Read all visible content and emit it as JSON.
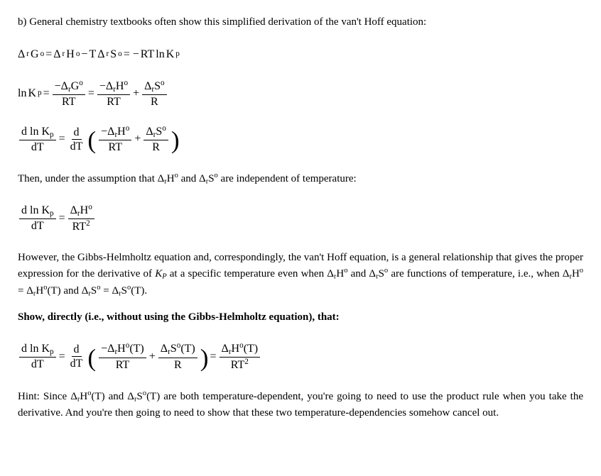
{
  "intro": "b) General chemistry textbooks often show this simplified derivation of the van't Hoff equation:",
  "eq1": {
    "DrGo": "Δ",
    "r1": "r",
    "Go": "G",
    "o1": "o",
    "eq": " = ",
    "DrHo": "Δ",
    "r2": "r",
    "Ho": "H",
    "o2": "o",
    "minus": " − ",
    "T": "T",
    "DrSo": "Δ",
    "r3": "r",
    "So": "S",
    "o3": "o",
    "eq2": " = −",
    "RT": "RT",
    "ln": " ln ",
    "K": "K",
    "p": "p"
  },
  "eq2": {
    "ln": "ln ",
    "K": "K",
    "p": "p",
    "eq": " = ",
    "num1_neg": "−Δ",
    "num1_r": "r",
    "num1_G": "G",
    "num1_o": "o",
    "den1": "RT",
    "eq2": " = ",
    "num2_neg": "−Δ",
    "num2_r": "r",
    "num2_H": "H",
    "num2_o": "o",
    "den2": "RT",
    "plus": " + ",
    "num3": "Δ",
    "num3_r": "r",
    "num3_S": "S",
    "num3_o": "o",
    "den3": "R"
  },
  "eq3": {
    "num_d": "d ln K",
    "num_p": "p",
    "den_dT": "dT",
    "eq": " = ",
    "d": "d",
    "dT2": "dT",
    "inner_neg": "−Δ",
    "inner_r1": "r",
    "inner_H": "H",
    "inner_o1": "o",
    "inner_den1": "RT",
    "plus": " + ",
    "inner2": "Δ",
    "inner_r2": "r",
    "inner_S": "S",
    "inner_o2": "o",
    "inner_den2": "R"
  },
  "assumption": "Then, under the assumption that Δ",
  "assump_r1": "r",
  "assump_H": "H",
  "assump_o1": "o",
  "assump_and": " and Δ",
  "assump_r2": "r",
  "assump_S": "S",
  "assump_o2": "o",
  "assump_tail": " are independent of temperature:",
  "eq4": {
    "num_d": "d ln K",
    "num_p": "p",
    "den_dT": "dT",
    "eq": " = ",
    "num": "Δ",
    "num_r": "r",
    "num_H": "H",
    "num_o": "o",
    "den": "RT",
    "den_sup": "2"
  },
  "para2_a": "However, the Gibbs-Helmholtz equation and, correspondingly, the van't Hoff equation, is a general relationship that gives the proper expression for the derivative of ",
  "para2_K": "K",
  "para2_P": "P",
  "para2_b": " at a specific temperature even when Δ",
  "p2_r1": "r",
  "p2_H1": "H",
  "p2_o1": "o",
  "para2_c": " and Δ",
  "p2_r2": "r",
  "p2_S1": "S",
  "p2_o2": "o",
  "para2_d": " are functions of temperature, i.e., when Δ",
  "p2_r3": "r",
  "p2_H2": "H",
  "p2_o3": "o",
  "para2_e": " = Δ",
  "p2_r4": "r",
  "p2_H3": "H",
  "p2_o4": "o",
  "para2_f": "(T) and Δ",
  "p2_r5": "r",
  "p2_S2": "S",
  "p2_o5": "o",
  "para2_g": " = Δ",
  "p2_r6": "r",
  "p2_S3": "S",
  "p2_o6": "o",
  "para2_h": "(T).",
  "show": "Show, directly (i.e., without using the Gibbs-Helmholtz equation), that:",
  "eq5": {
    "num_d": "d ln K",
    "num_p": "p",
    "den_dT": "dT",
    "eq": " = ",
    "d": "d",
    "dT2": "dT",
    "a_neg": "−Δ",
    "a_r": "r",
    "a_H": "H",
    "a_o": "o",
    "a_T": "(T)",
    "a_den": "RT",
    "plus": " + ",
    "b": "Δ",
    "b_r": "r",
    "b_S": "S",
    "b_o": "o",
    "b_T": "(T)",
    "b_den": "R",
    "eq2": " = ",
    "c": "Δ",
    "c_r": "r",
    "c_H": "H",
    "c_o": "o",
    "c_T": "(T)",
    "c_den": "RT",
    "c_sup": "2"
  },
  "hint_a": "Hint: Since Δ",
  "h_r1": "r",
  "h_H": "H",
  "h_o1": "o",
  "hint_b": "(T) and Δ",
  "h_r2": "r",
  "h_S": "S",
  "h_o2": "o",
  "hint_c": "(T) are both temperature-dependent, you're going to need to use the product rule when you take the derivative. And you're then going to need to show that these two temperature-dependencies somehow cancel out."
}
